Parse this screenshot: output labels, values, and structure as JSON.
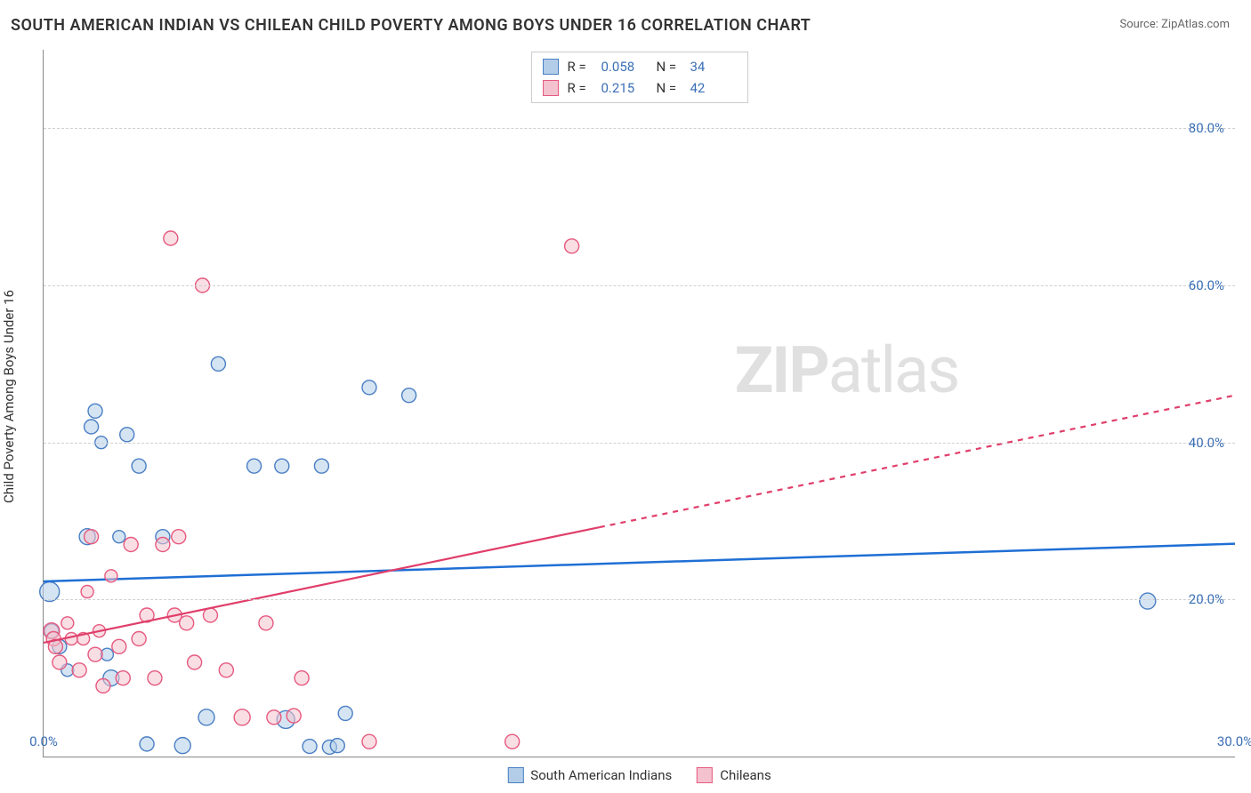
{
  "title": "SOUTH AMERICAN INDIAN VS CHILEAN CHILD POVERTY AMONG BOYS UNDER 16 CORRELATION CHART",
  "source": "Source: ZipAtlas.com",
  "watermark_zip": "ZIP",
  "watermark_atlas": "atlas",
  "chart": {
    "type": "scatter",
    "ylabel": "Child Poverty Among Boys Under 16",
    "background_color": "#ffffff",
    "grid_color": "#d0d0d0",
    "axis_color": "#888888",
    "label_color": "#3b6fb6",
    "xlim": [
      0,
      30
    ],
    "ylim": [
      0,
      90
    ],
    "xticks": [
      {
        "v": 0,
        "label": "0.0%"
      },
      {
        "v": 30,
        "label": "30.0%"
      }
    ],
    "yticks": [
      {
        "v": 20,
        "label": "20.0%"
      },
      {
        "v": 40,
        "label": "40.0%"
      },
      {
        "v": 60,
        "label": "60.0%"
      },
      {
        "v": 80,
        "label": "80.0%"
      }
    ],
    "series": [
      {
        "name": "South American Indians",
        "fill": "#b3cde8",
        "stroke": "#4a7fc4",
        "fill_opacity": 0.55,
        "marker_r_base": 8,
        "trend": {
          "x1": 0,
          "y1": 22.3,
          "x2": 30,
          "y2": 27.1,
          "color": "#1f6fd4",
          "width": 2.5,
          "solid_to_x": 30
        },
        "R": "0.058",
        "N": "34",
        "points": [
          {
            "x": 0.15,
            "y": 21,
            "r": 11
          },
          {
            "x": 0.2,
            "y": 16,
            "r": 8
          },
          {
            "x": 0.4,
            "y": 14,
            "r": 8
          },
          {
            "x": 0.6,
            "y": 11,
            "r": 7
          },
          {
            "x": 1.1,
            "y": 28,
            "r": 9
          },
          {
            "x": 1.2,
            "y": 42,
            "r": 8
          },
          {
            "x": 1.3,
            "y": 44,
            "r": 8
          },
          {
            "x": 1.45,
            "y": 40,
            "r": 7
          },
          {
            "x": 1.6,
            "y": 13,
            "r": 7
          },
          {
            "x": 1.7,
            "y": 10,
            "r": 9
          },
          {
            "x": 1.9,
            "y": 28,
            "r": 7
          },
          {
            "x": 2.1,
            "y": 41,
            "r": 8
          },
          {
            "x": 2.4,
            "y": 37,
            "r": 8
          },
          {
            "x": 2.6,
            "y": 1.6,
            "r": 8
          },
          {
            "x": 3.0,
            "y": 28,
            "r": 8
          },
          {
            "x": 3.5,
            "y": 1.4,
            "r": 9
          },
          {
            "x": 4.1,
            "y": 5.0,
            "r": 9
          },
          {
            "x": 4.4,
            "y": 50,
            "r": 8
          },
          {
            "x": 5.3,
            "y": 37,
            "r": 8
          },
          {
            "x": 6.0,
            "y": 37,
            "r": 8
          },
          {
            "x": 6.1,
            "y": 4.7,
            "r": 10
          },
          {
            "x": 6.7,
            "y": 1.3,
            "r": 8
          },
          {
            "x": 7.0,
            "y": 37,
            "r": 8
          },
          {
            "x": 7.2,
            "y": 1.2,
            "r": 8
          },
          {
            "x": 7.4,
            "y": 1.4,
            "r": 8
          },
          {
            "x": 7.6,
            "y": 5.5,
            "r": 8
          },
          {
            "x": 8.2,
            "y": 47,
            "r": 8
          },
          {
            "x": 9.2,
            "y": 46,
            "r": 8
          },
          {
            "x": 27.8,
            "y": 19.8,
            "r": 9
          }
        ]
      },
      {
        "name": "Chileans",
        "fill": "#f4c2ce",
        "stroke": "#e65a7f",
        "fill_opacity": 0.55,
        "marker_r_base": 8,
        "trend": {
          "x1": 0,
          "y1": 14.5,
          "x2": 30,
          "y2": 46,
          "color": "#e03e6a",
          "width": 2.2,
          "solid_to_x": 14
        },
        "R": "0.215",
        "N": "42",
        "points": [
          {
            "x": 0.2,
            "y": 16,
            "r": 9
          },
          {
            "x": 0.25,
            "y": 15,
            "r": 8
          },
          {
            "x": 0.3,
            "y": 14,
            "r": 8
          },
          {
            "x": 0.4,
            "y": 12,
            "r": 8
          },
          {
            "x": 0.6,
            "y": 17,
            "r": 7
          },
          {
            "x": 0.7,
            "y": 15,
            "r": 7
          },
          {
            "x": 0.9,
            "y": 11,
            "r": 8
          },
          {
            "x": 1.0,
            "y": 15,
            "r": 7
          },
          {
            "x": 1.1,
            "y": 21,
            "r": 7
          },
          {
            "x": 1.2,
            "y": 28,
            "r": 8
          },
          {
            "x": 1.3,
            "y": 13,
            "r": 8
          },
          {
            "x": 1.4,
            "y": 16,
            "r": 7
          },
          {
            "x": 1.5,
            "y": 9,
            "r": 8
          },
          {
            "x": 1.7,
            "y": 23,
            "r": 7
          },
          {
            "x": 1.9,
            "y": 14,
            "r": 8
          },
          {
            "x": 2.0,
            "y": 10,
            "r": 8
          },
          {
            "x": 2.2,
            "y": 27,
            "r": 8
          },
          {
            "x": 2.4,
            "y": 15,
            "r": 8
          },
          {
            "x": 2.6,
            "y": 18,
            "r": 8
          },
          {
            "x": 2.8,
            "y": 10,
            "r": 8
          },
          {
            "x": 3.0,
            "y": 27,
            "r": 8
          },
          {
            "x": 3.2,
            "y": 66,
            "r": 8
          },
          {
            "x": 3.3,
            "y": 18,
            "r": 8
          },
          {
            "x": 3.4,
            "y": 28,
            "r": 8
          },
          {
            "x": 3.6,
            "y": 17,
            "r": 8
          },
          {
            "x": 3.8,
            "y": 12,
            "r": 8
          },
          {
            "x": 4.0,
            "y": 60,
            "r": 8
          },
          {
            "x": 4.2,
            "y": 18,
            "r": 8
          },
          {
            "x": 4.6,
            "y": 11,
            "r": 8
          },
          {
            "x": 5.0,
            "y": 5.0,
            "r": 9
          },
          {
            "x": 5.6,
            "y": 17,
            "r": 8
          },
          {
            "x": 5.8,
            "y": 5.0,
            "r": 8
          },
          {
            "x": 6.3,
            "y": 5.2,
            "r": 8
          },
          {
            "x": 6.5,
            "y": 10,
            "r": 8
          },
          {
            "x": 8.2,
            "y": 1.9,
            "r": 8
          },
          {
            "x": 11.8,
            "y": 1.9,
            "r": 8
          },
          {
            "x": 13.3,
            "y": 65,
            "r": 8
          }
        ]
      }
    ]
  },
  "legend": {
    "swatch1": {
      "fill": "#b3cde8",
      "stroke": "#4a7fc4"
    },
    "swatch2": {
      "fill": "#f4c2ce",
      "stroke": "#e65a7f"
    }
  }
}
